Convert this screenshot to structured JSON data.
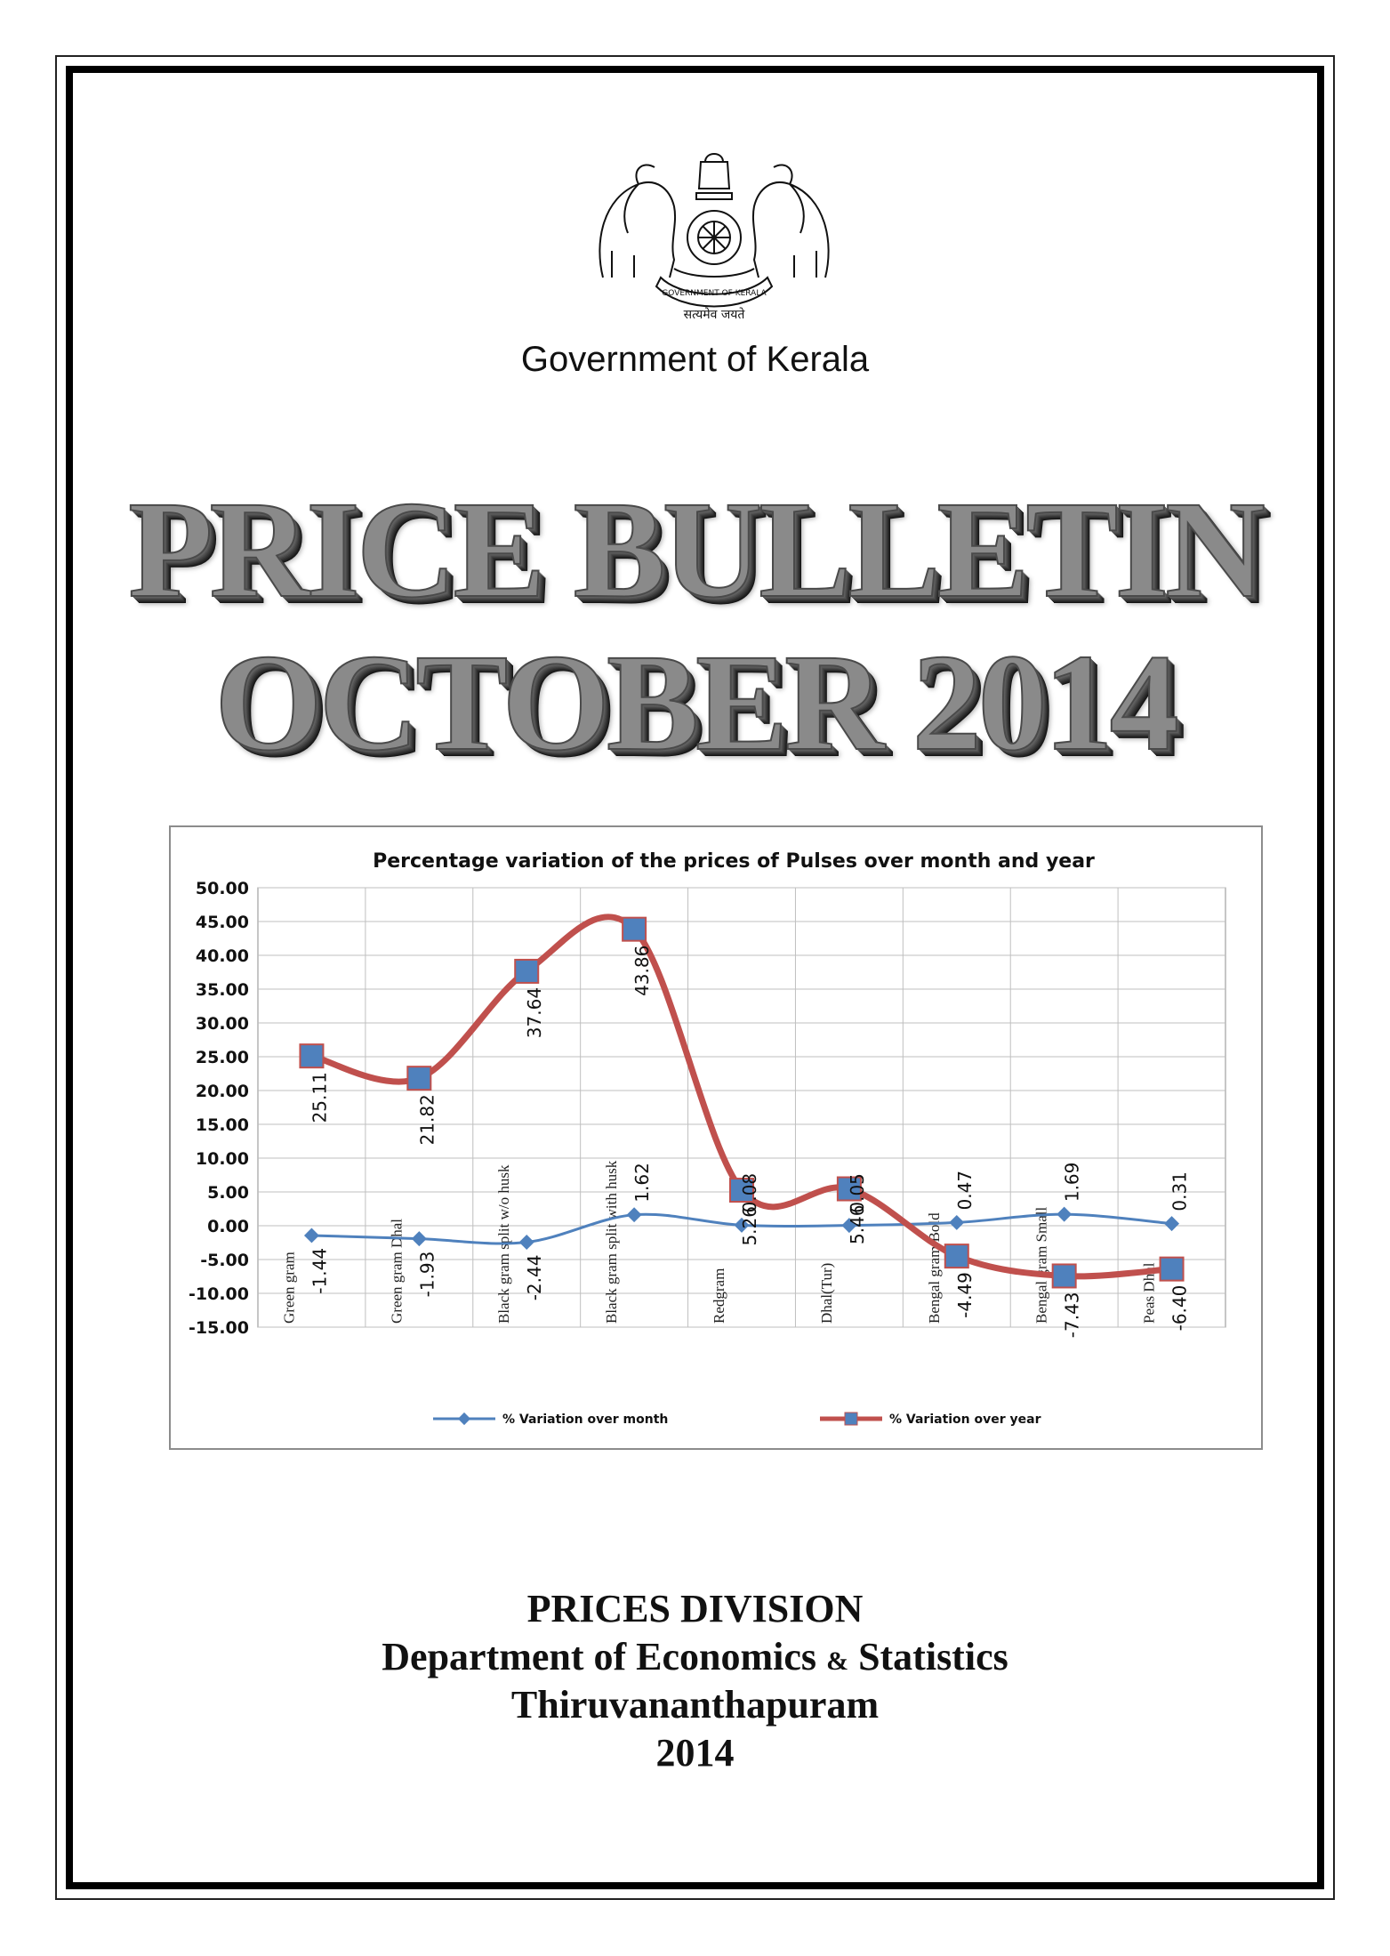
{
  "header": {
    "government": "Government of Kerala",
    "emblem_icon": "kerala-state-emblem-icon",
    "emblem_motto": "सत्यमेव जयते",
    "emblem_ribbon": "GOVERNMENT OF KERALA"
  },
  "title": {
    "line1": "PRICE BULLETIN",
    "line2": "OCTOBER 2014"
  },
  "chart_data": {
    "type": "line",
    "title": "Percentage variation of the prices of Pulses over month and year",
    "categories": [
      "Green gram",
      "Green gram Dhal",
      "Black gram split w/o husk",
      "Black gram split with husk",
      "Redgram",
      "Dhal(Tur)",
      "Bengal gram Bold",
      "Bengal gram Small",
      "Peas Dhal"
    ],
    "series": [
      {
        "name": "% Variation over month",
        "values": [
          -1.44,
          -1.93,
          -2.44,
          1.62,
          0.08,
          0.05,
          0.47,
          1.69,
          0.31
        ],
        "color": "#4f81bd"
      },
      {
        "name": "% Variation over year",
        "values": [
          25.11,
          21.82,
          37.64,
          43.86,
          5.26,
          5.46,
          -4.49,
          -7.43,
          -6.4
        ],
        "color": "#c0504d"
      }
    ],
    "y_ticks": [
      "50.00",
      "45.00",
      "40.00",
      "35.00",
      "30.00",
      "25.00",
      "20.00",
      "15.00",
      "10.00",
      "5.00",
      "0.00",
      "-5.00",
      "-10.00",
      "-15.00"
    ],
    "ylim": [
      -15,
      50
    ],
    "grid": true,
    "legend": "bottom"
  },
  "footer": {
    "division": "PRICES DIVISION",
    "dept_a": "Department of Economics ",
    "dept_amp": "&",
    "dept_b": " Statistics",
    "city": "Thiruvananthapuram",
    "year": "2014"
  }
}
